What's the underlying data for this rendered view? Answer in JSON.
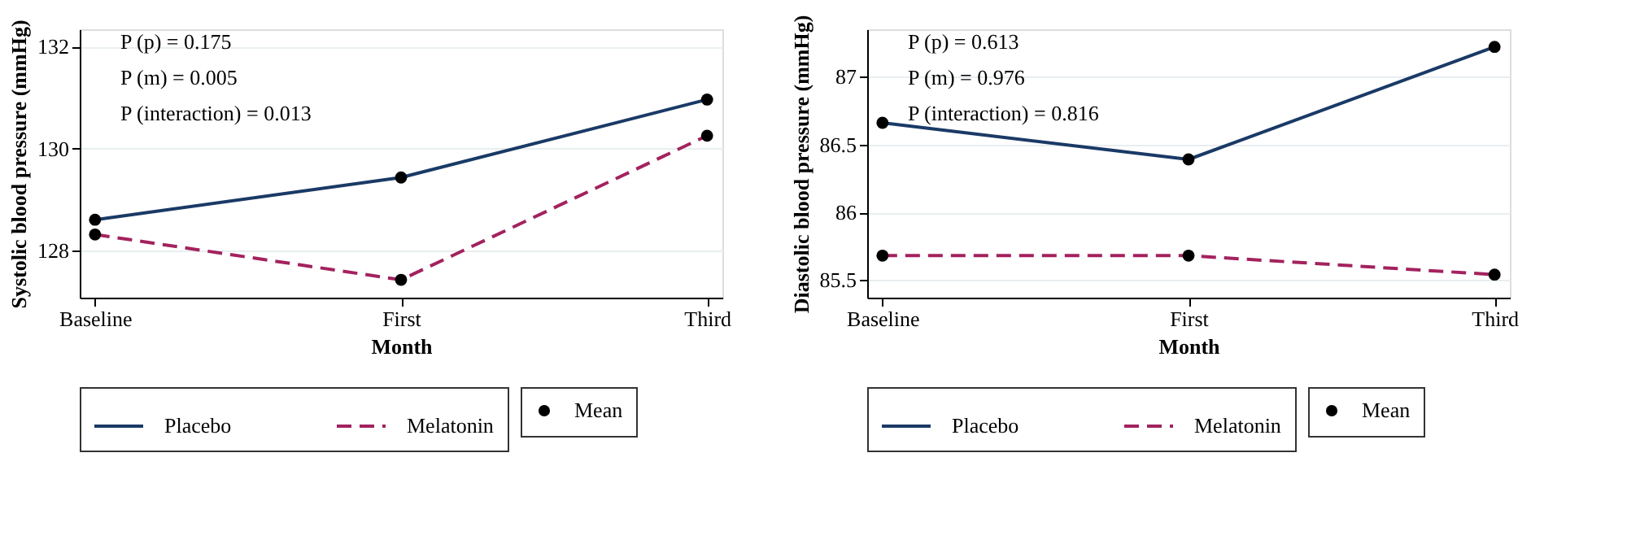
{
  "chart_data": [
    {
      "type": "line",
      "categories": [
        "Baseline",
        "First",
        "Third"
      ],
      "xlabel": "Month",
      "ylabel": "Systolic blood pressure (mmHg)",
      "ylim": [
        127.07,
        132.34
      ],
      "yticks": [
        128,
        130,
        132
      ],
      "grid": "y",
      "marker": "circle",
      "legend": "bottom",
      "annotations": [
        "P (p) = 0.175",
        "P (m) = 0.005",
        "P (interaction) = 0.013",
        "Mean"
      ],
      "series": [
        {
          "name": "Placebo",
          "color": "#1a3a66",
          "line_style": "solid",
          "values": [
            128.6,
            129.43,
            130.96
          ]
        },
        {
          "name": "Melatonin",
          "color": "#a3225e",
          "line_style": "dashed",
          "values": [
            128.31,
            127.42,
            130.25
          ]
        }
      ]
    },
    {
      "type": "line",
      "categories": [
        "Baseline",
        "First",
        "Third"
      ],
      "xlabel": "Month",
      "ylabel": "Diastolic blood pressure (mmHg)",
      "ylim": [
        85.37,
        87.35
      ],
      "yticks": [
        85.5,
        86,
        86.5,
        87
      ],
      "grid": "y",
      "marker": "circle",
      "legend": "bottom",
      "annotations": [
        "P (p) = 0.613",
        "P (m) = 0.976",
        "P (interaction) = 0.816",
        "Mean"
      ],
      "series": [
        {
          "name": "Placebo",
          "color": "#1a3a66",
          "line_style": "solid",
          "values": [
            86.66,
            86.39,
            87.22
          ]
        },
        {
          "name": "Melatonin",
          "color": "#a3225e",
          "line_style": "dashed",
          "values": [
            85.68,
            85.68,
            85.54
          ]
        }
      ]
    }
  ]
}
